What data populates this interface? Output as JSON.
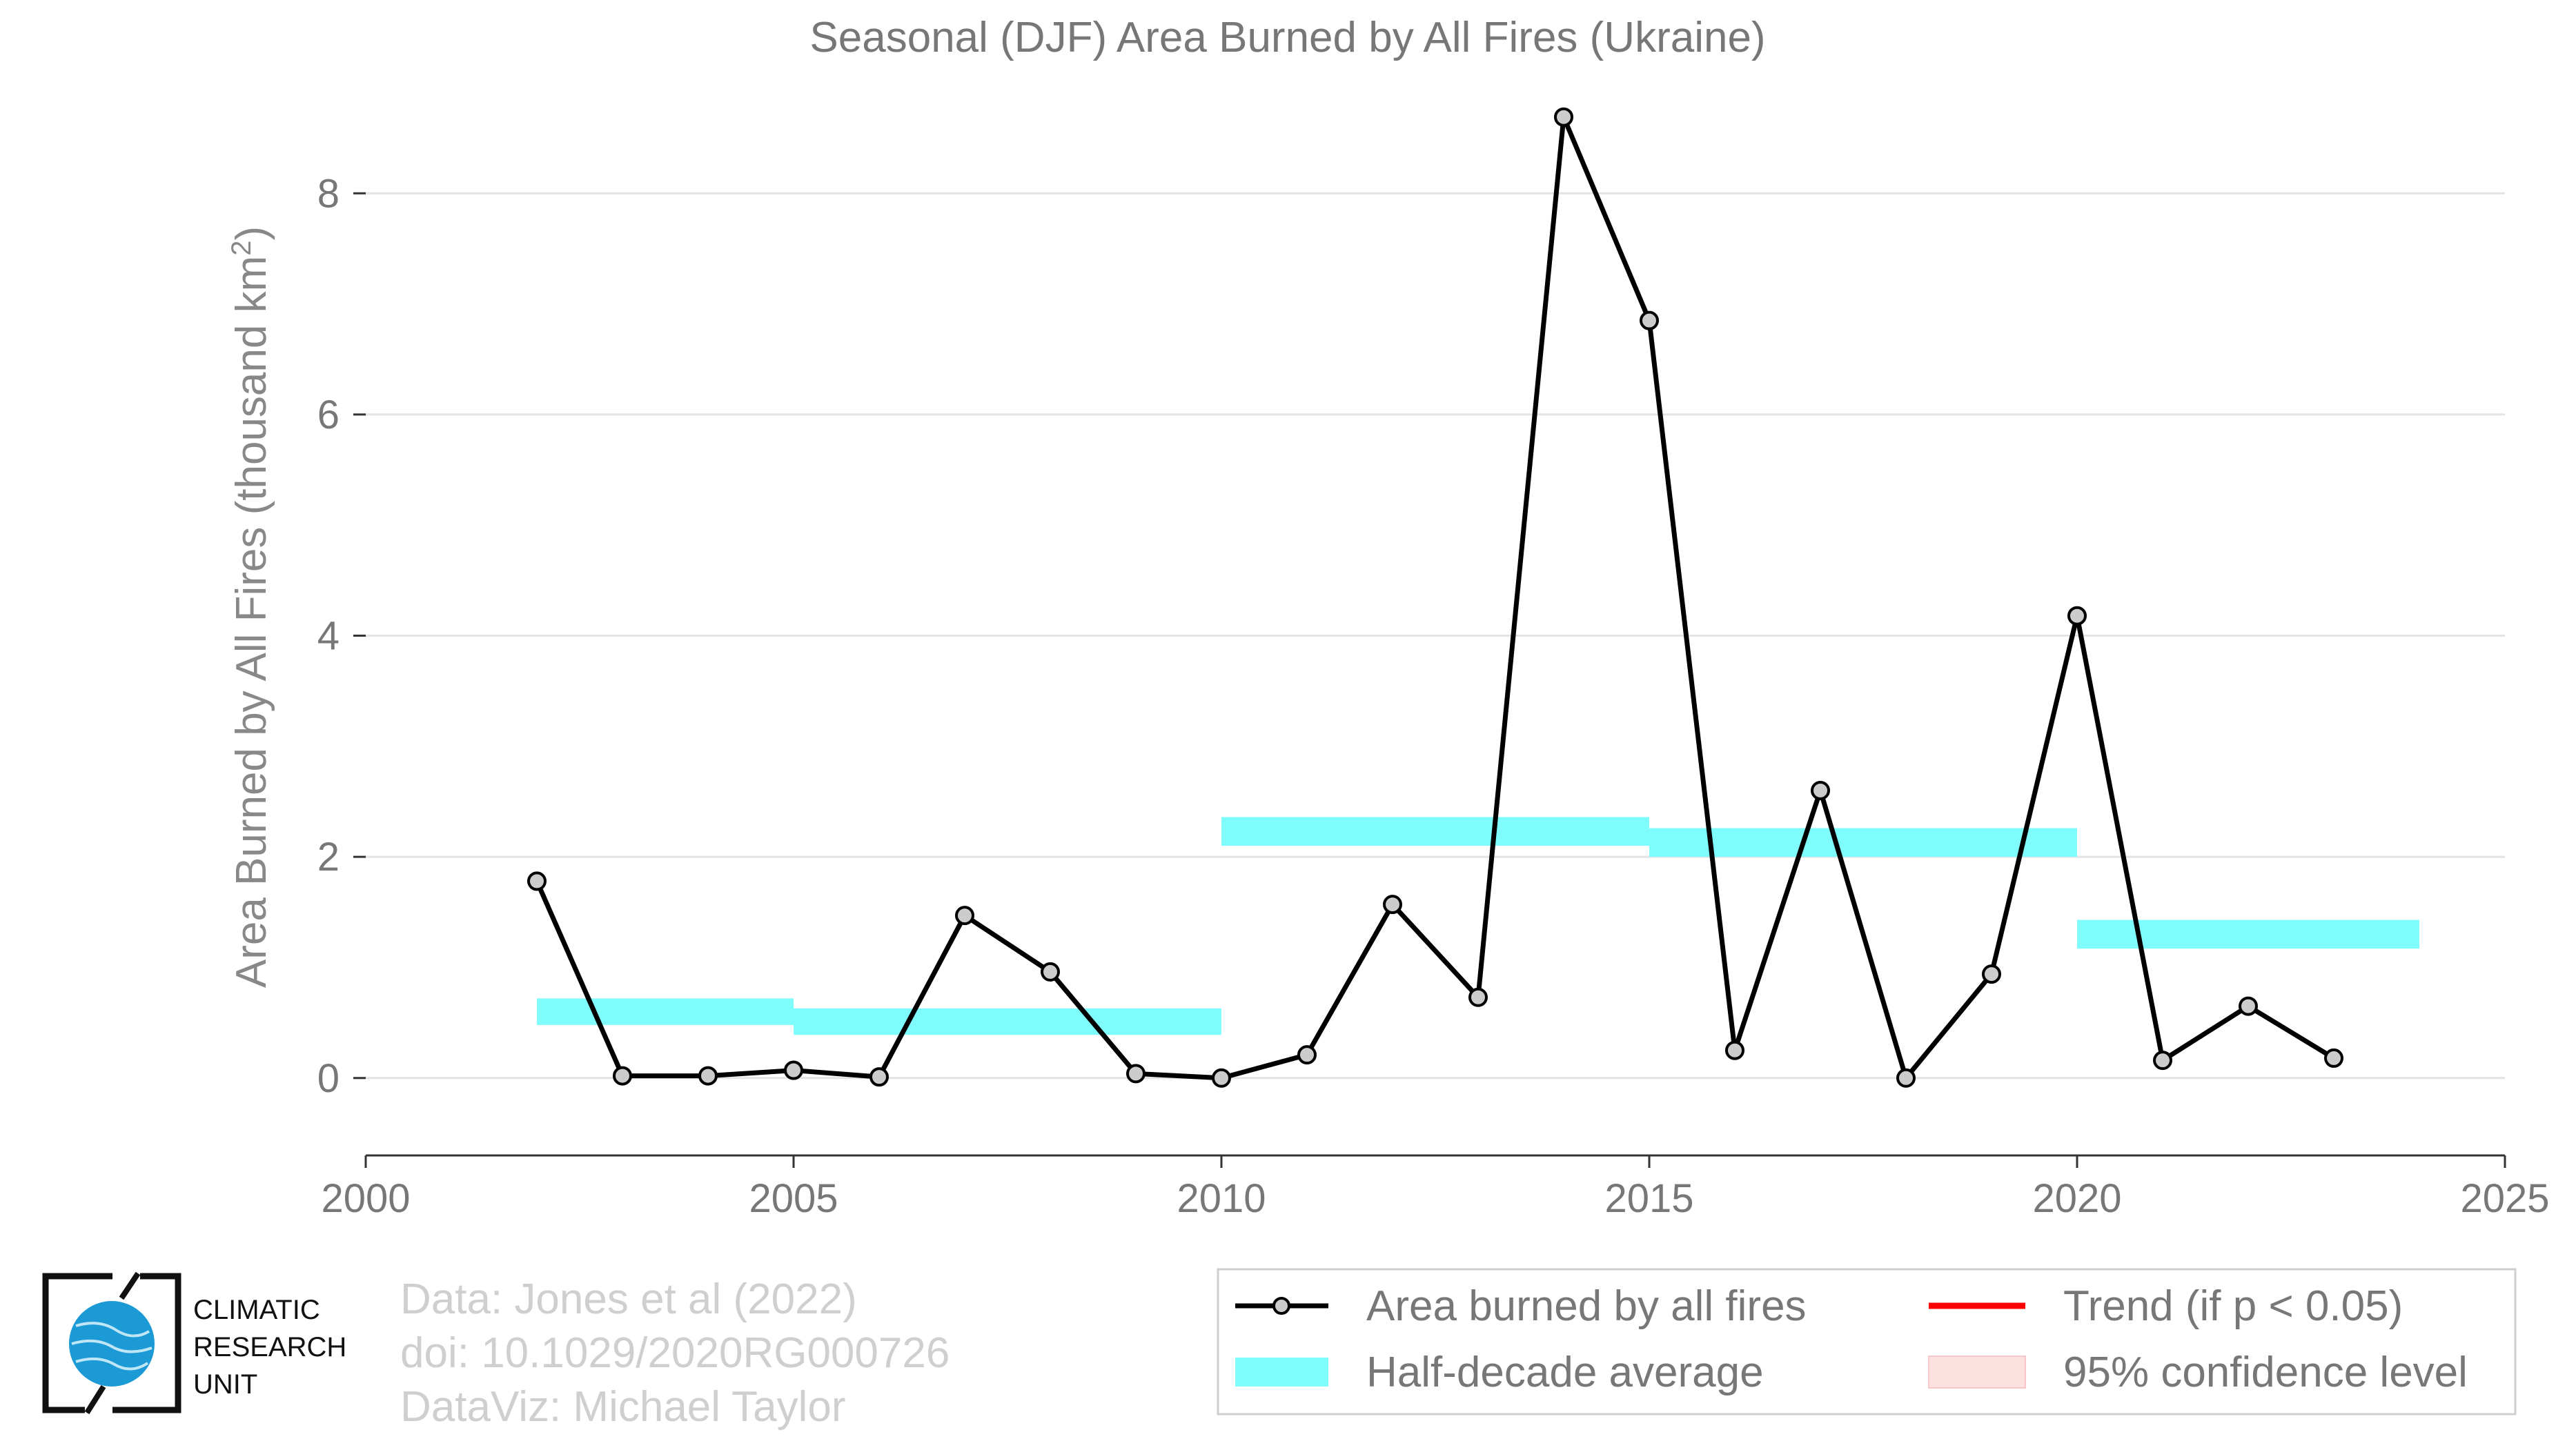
{
  "chart_data": {
    "type": "line",
    "title": "Seasonal (DJF) Area Burned by All Fires (Ukraine)",
    "ylabel_prefix": "Area Burned by All Fires (thousand km",
    "ylabel_sup": "2",
    "ylabel_suffix": ")",
    "xlabel": "",
    "xlim": [
      2000,
      2025
    ],
    "ylim": [
      -0.7,
      9.0
    ],
    "xticks": [
      2000,
      2005,
      2010,
      2015,
      2020,
      2025
    ],
    "yticks": [
      0,
      2,
      4,
      6,
      8
    ],
    "grid": "horizontal",
    "series": [
      {
        "name": "Area burned by all fires",
        "color": "#000000",
        "marker_fill": "#cccccc",
        "x": [
          2002,
          2003,
          2004,
          2005,
          2006,
          2007,
          2008,
          2009,
          2010,
          2011,
          2012,
          2013,
          2014,
          2015,
          2016,
          2017,
          2018,
          2019,
          2020,
          2021,
          2022,
          2023
        ],
        "y": [
          1.78,
          0.02,
          0.02,
          0.07,
          0.01,
          1.47,
          0.96,
          0.04,
          0.0,
          0.21,
          1.57,
          0.73,
          8.69,
          6.85,
          0.25,
          2.6,
          0.0,
          0.94,
          4.18,
          0.16,
          0.65,
          0.18
        ]
      }
    ],
    "half_decade_average": {
      "name": "Half-decade average",
      "color": "#7ffcfc",
      "segments": [
        {
          "x0": 2002,
          "x1": 2005,
          "low": 0.48,
          "high": 0.72
        },
        {
          "x0": 2005,
          "x1": 2010,
          "low": 0.39,
          "high": 0.63
        },
        {
          "x0": 2010,
          "x1": 2015,
          "low": 2.1,
          "high": 2.36
        },
        {
          "x0": 2015,
          "x1": 2020,
          "low": 2.0,
          "high": 2.26
        },
        {
          "x0": 2020,
          "x1": 2024,
          "low": 1.17,
          "high": 1.43
        }
      ]
    },
    "legend": {
      "placement": "bottom-right",
      "entries": [
        {
          "label": "Area burned by all fires",
          "kind": "line-marker",
          "color": "#000000"
        },
        {
          "label": "Trend (if p < 0.05)",
          "kind": "line",
          "color": "#ff0000"
        },
        {
          "label": "Half-decade average",
          "kind": "band",
          "color": "#7ffcfc"
        },
        {
          "label": "95% confidence level",
          "kind": "band",
          "color": "#fde0e0"
        }
      ]
    }
  },
  "credits": {
    "line1": "Data: Jones et al (2022)",
    "line2": "doi: 10.1029/2020RG000726",
    "line3": "DataViz: Michael Taylor"
  },
  "logo": {
    "line1": "CLIMATIC",
    "line2": "RESEARCH",
    "line3": "UNIT",
    "color": "#1b9ad6"
  }
}
